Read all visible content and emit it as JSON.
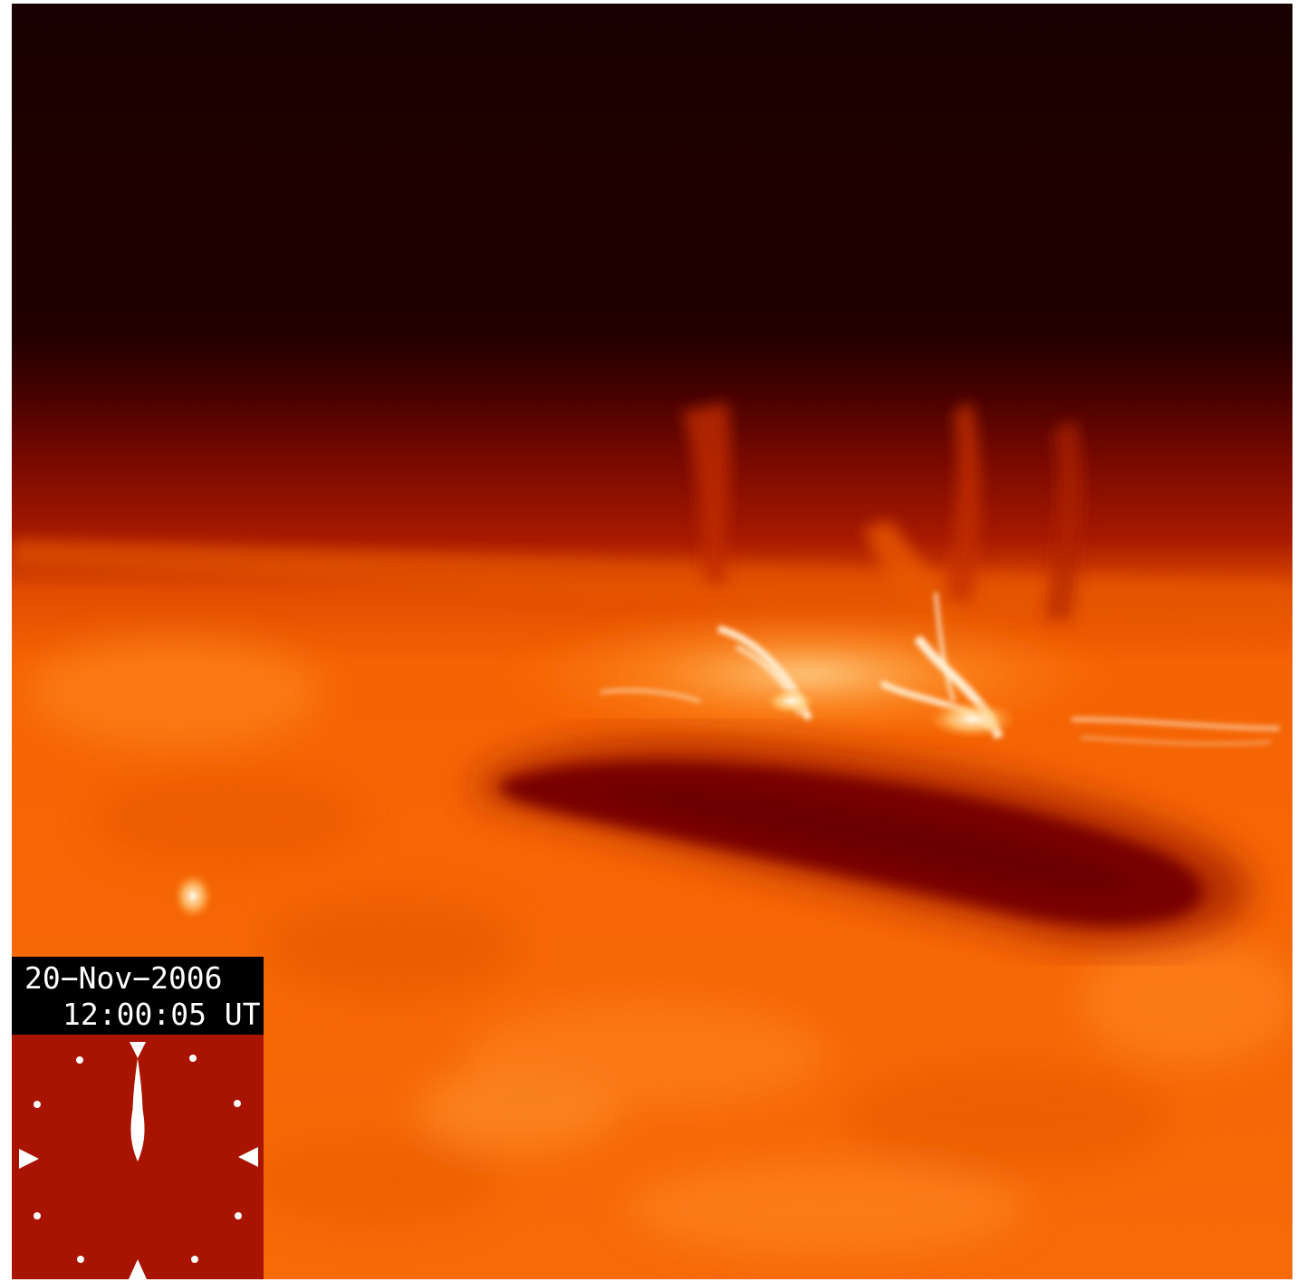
{
  "timestamp": {
    "date": "20−Nov−2006",
    "time": "12:00:05 UT"
  },
  "colors": {
    "background": "#ffffff",
    "corona_dark": "#1c0000",
    "limb_red": "#8a0c00",
    "disk_orange": "#f86a08",
    "filament": "#7a0800",
    "loops_bright": "#fff0d0",
    "clock_face": "#a81400",
    "clock_marks": "#ffffff",
    "label_background": "#000000"
  },
  "clock": {
    "shown_time": "12:00"
  }
}
